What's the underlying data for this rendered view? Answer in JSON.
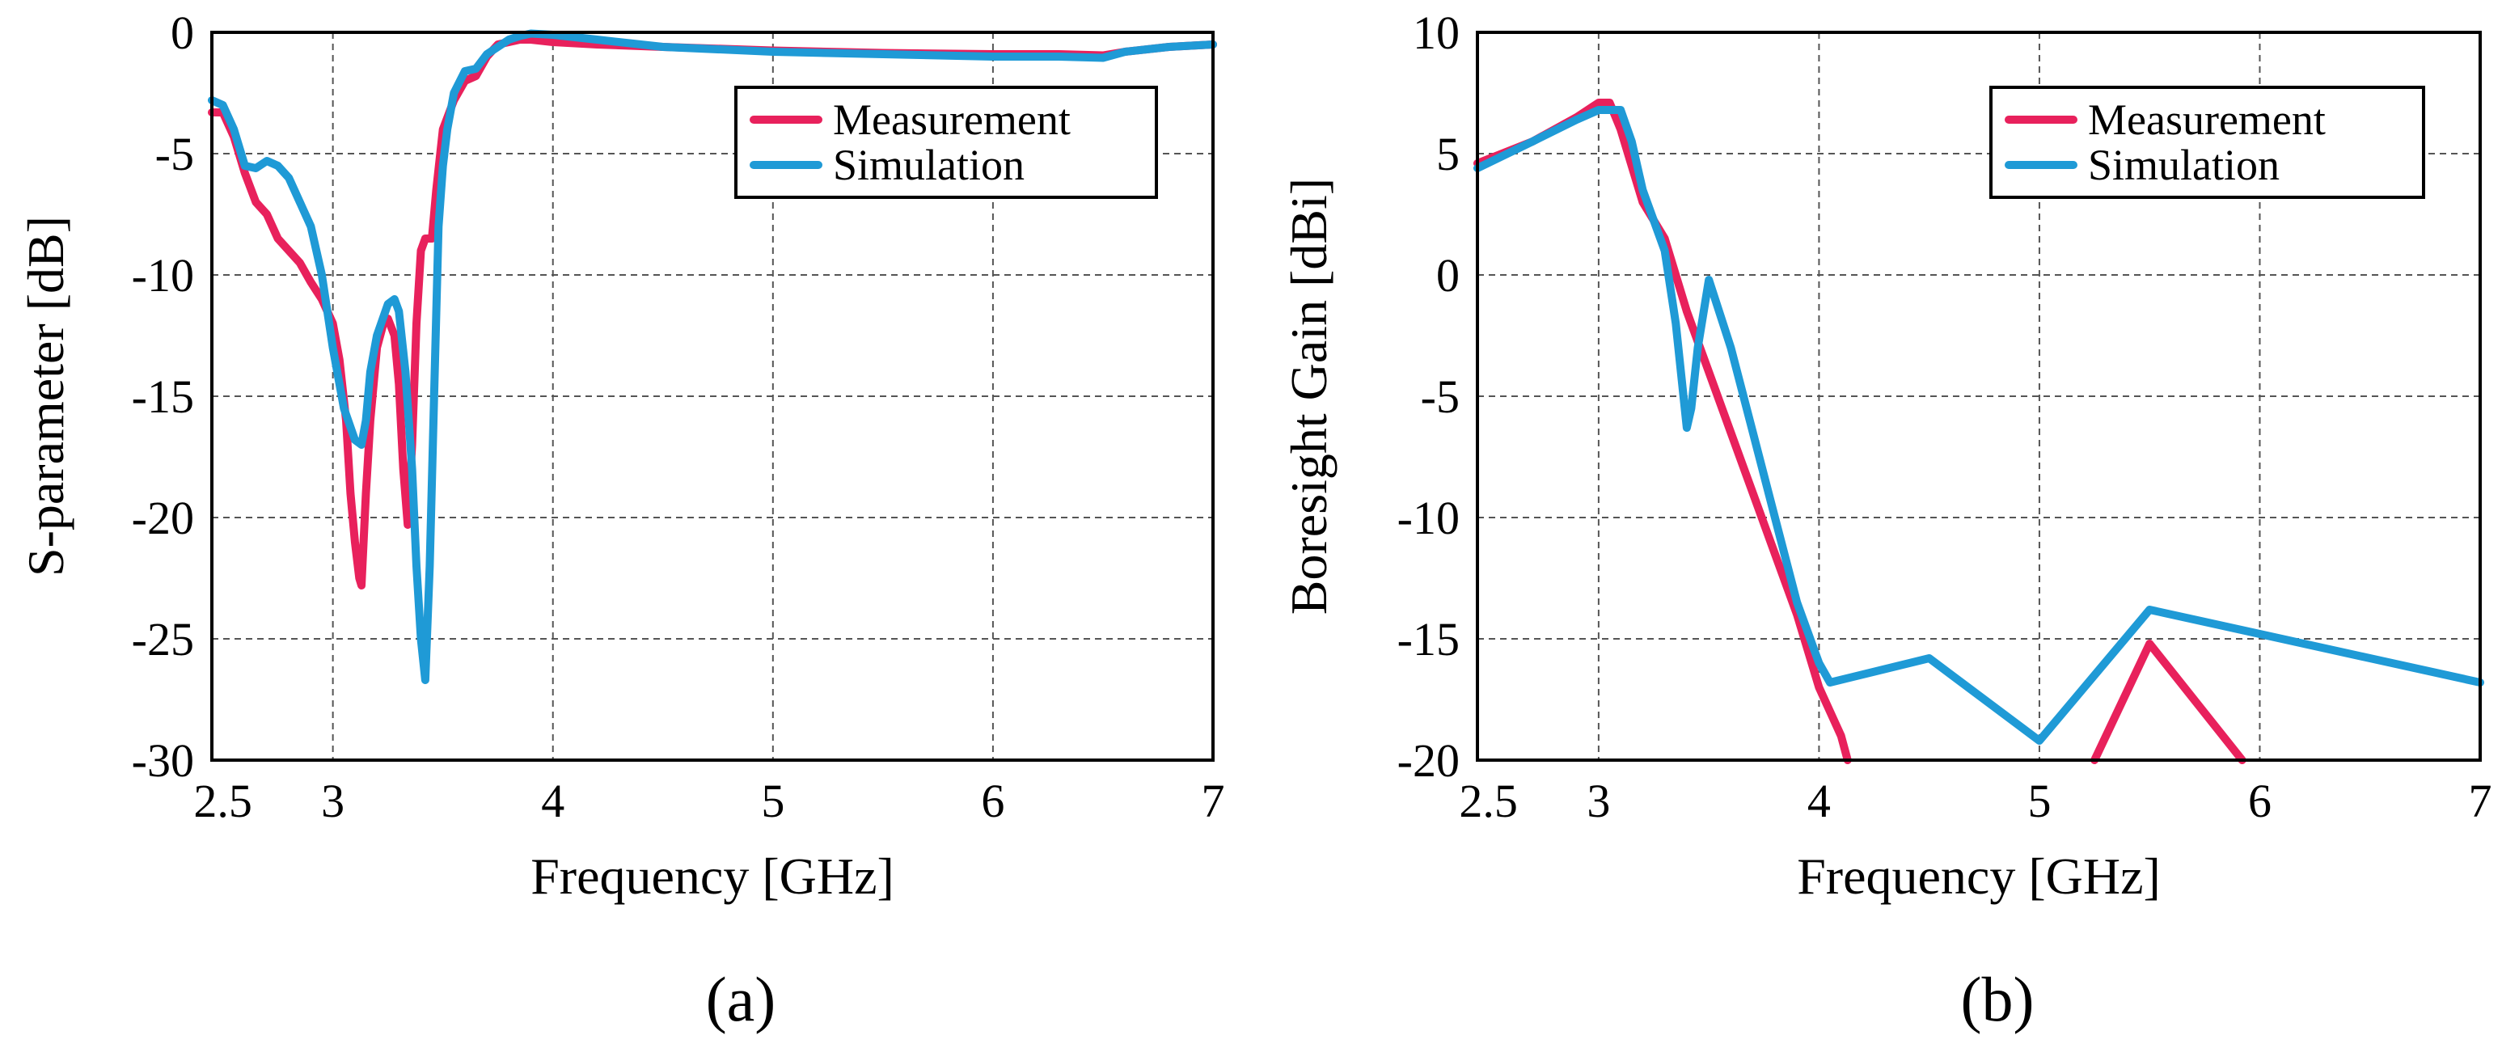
{
  "colors": {
    "measurement": "#e8215c",
    "simulation": "#1f9ad6"
  },
  "chart_data": [
    {
      "id": "a",
      "type": "line",
      "panel_label": "(a)",
      "xlabel": "Frequency [GHz]",
      "ylabel": "S-parameter [dB]",
      "xlim": [
        2.45,
        7
      ],
      "ylim": [
        -30,
        0
      ],
      "xticks": [
        2.5,
        3,
        4,
        5,
        6,
        7
      ],
      "xtick_labels": [
        "2.5",
        "3",
        "4",
        "5",
        "6",
        "7"
      ],
      "yticks": [
        0,
        -5,
        -10,
        -15,
        -20,
        -25,
        -30
      ],
      "ytick_labels": [
        "0",
        "-5",
        "-10",
        "-15",
        "-20",
        "-25",
        "-30"
      ],
      "grid": true,
      "legend_position": "top-right",
      "series": [
        {
          "name": "Measurement",
          "color_key": "measurement",
          "x": [
            2.45,
            2.5,
            2.55,
            2.6,
            2.65,
            2.7,
            2.75,
            2.8,
            2.85,
            2.9,
            2.95,
            3.0,
            3.03,
            3.06,
            3.08,
            3.1,
            3.12,
            3.13,
            3.15,
            3.17,
            3.2,
            3.23,
            3.25,
            3.28,
            3.3,
            3.32,
            3.34,
            3.36,
            3.38,
            3.4,
            3.42,
            3.45,
            3.47,
            3.5,
            3.55,
            3.6,
            3.65,
            3.7,
            3.75,
            3.8,
            3.85,
            3.9,
            4.0,
            4.2,
            4.5,
            5.0,
            5.5,
            6.0,
            6.3,
            6.5,
            6.6,
            6.8,
            7.0
          ],
          "values": [
            -3.3,
            -3.3,
            -4.3,
            -5.8,
            -7.0,
            -7.5,
            -8.5,
            -9.0,
            -9.5,
            -10.3,
            -11.0,
            -12.0,
            -13.5,
            -16.0,
            -19.0,
            -21.0,
            -22.5,
            -22.8,
            -19.0,
            -16.0,
            -13.0,
            -12.0,
            -11.8,
            -12.5,
            -14.5,
            -18.0,
            -20.3,
            -17.0,
            -12.0,
            -9.0,
            -8.5,
            -8.5,
            -6.5,
            -4.0,
            -2.8,
            -2.0,
            -1.8,
            -1.0,
            -0.5,
            -0.4,
            -0.3,
            -0.3,
            -0.4,
            -0.5,
            -0.6,
            -0.75,
            -0.85,
            -0.9,
            -0.9,
            -0.95,
            -0.8,
            -0.6,
            -0.5
          ]
        },
        {
          "name": "Simulation",
          "color_key": "simulation",
          "x": [
            2.45,
            2.5,
            2.55,
            2.6,
            2.65,
            2.7,
            2.75,
            2.8,
            2.85,
            2.9,
            2.95,
            3.0,
            3.05,
            3.1,
            3.13,
            3.15,
            3.17,
            3.2,
            3.25,
            3.28,
            3.3,
            3.33,
            3.36,
            3.38,
            3.4,
            3.42,
            3.44,
            3.46,
            3.48,
            3.5,
            3.52,
            3.55,
            3.6,
            3.65,
            3.7,
            3.8,
            3.85,
            3.9,
            4.0,
            4.2,
            4.5,
            5.0,
            5.5,
            6.0,
            6.3,
            6.5,
            6.6,
            6.8,
            7.0
          ],
          "values": [
            -2.8,
            -3.0,
            -4.0,
            -5.5,
            -5.6,
            -5.3,
            -5.5,
            -6.0,
            -7.0,
            -8.0,
            -10.0,
            -13.0,
            -15.5,
            -16.8,
            -17.0,
            -16.0,
            -14.0,
            -12.5,
            -11.2,
            -11.0,
            -11.5,
            -14.0,
            -18.0,
            -22.0,
            -25.0,
            -26.7,
            -22.0,
            -15.0,
            -8.0,
            -5.5,
            -4.0,
            -2.5,
            -1.6,
            -1.5,
            -0.9,
            -0.3,
            -0.15,
            -0.05,
            -0.1,
            -0.3,
            -0.6,
            -0.8,
            -0.9,
            -1.0,
            -1.0,
            -1.05,
            -0.8,
            -0.6,
            -0.5
          ]
        }
      ]
    },
    {
      "id": "b",
      "type": "line",
      "panel_label": "(b)",
      "xlabel": "Frequency [GHz]",
      "ylabel": "Boresight Gain [dBi]",
      "xlim": [
        2.45,
        7
      ],
      "ylim": [
        -20,
        10
      ],
      "xticks": [
        2.5,
        3,
        4,
        5,
        6,
        7
      ],
      "xtick_labels": [
        "2.5",
        "3",
        "4",
        "5",
        "6",
        "7"
      ],
      "yticks": [
        10,
        5,
        0,
        -5,
        -10,
        -15,
        -20
      ],
      "ytick_labels": [
        "10",
        "5",
        "0",
        "-5",
        "-10",
        "-15",
        "-20"
      ],
      "grid": true,
      "legend_position": "top-right",
      "series": [
        {
          "name": "Measurement",
          "color_key": "measurement",
          "segments": [
            {
              "x": [
                2.45,
                2.7,
                2.9,
                3.0,
                3.05,
                3.1,
                3.2,
                3.3,
                3.4,
                3.5,
                3.6,
                3.7,
                3.8,
                3.9,
                4.0,
                4.1,
                4.13
              ],
              "values": [
                4.6,
                5.5,
                6.5,
                7.1,
                7.1,
                6.0,
                3.0,
                1.5,
                -1.5,
                -4.0,
                -6.5,
                -9.0,
                -11.5,
                -14.0,
                -17.0,
                -19.0,
                -20.0
              ]
            },
            {
              "x": [
                5.25,
                5.5,
                5.92
              ],
              "values": [
                -20.0,
                -15.2,
                -20.0
              ]
            }
          ]
        },
        {
          "name": "Simulation",
          "color_key": "simulation",
          "segments": [
            {
              "x": [
                2.45,
                2.7,
                2.9,
                3.0,
                3.1,
                3.15,
                3.2,
                3.3,
                3.35,
                3.4,
                3.42,
                3.45,
                3.5,
                3.6,
                3.7,
                3.8,
                3.9,
                4.0,
                4.05,
                4.5,
                5.0,
                5.5,
                6.0,
                6.5,
                7.0
              ],
              "values": [
                4.4,
                5.5,
                6.4,
                6.8,
                6.8,
                5.5,
                3.5,
                1.0,
                -2.0,
                -6.3,
                -5.5,
                -3.0,
                -0.2,
                -3.0,
                -6.5,
                -10.0,
                -13.5,
                -16.0,
                -16.8,
                -15.8,
                -19.2,
                -13.8,
                -14.8,
                -15.8,
                -16.8
              ]
            }
          ]
        }
      ]
    }
  ]
}
